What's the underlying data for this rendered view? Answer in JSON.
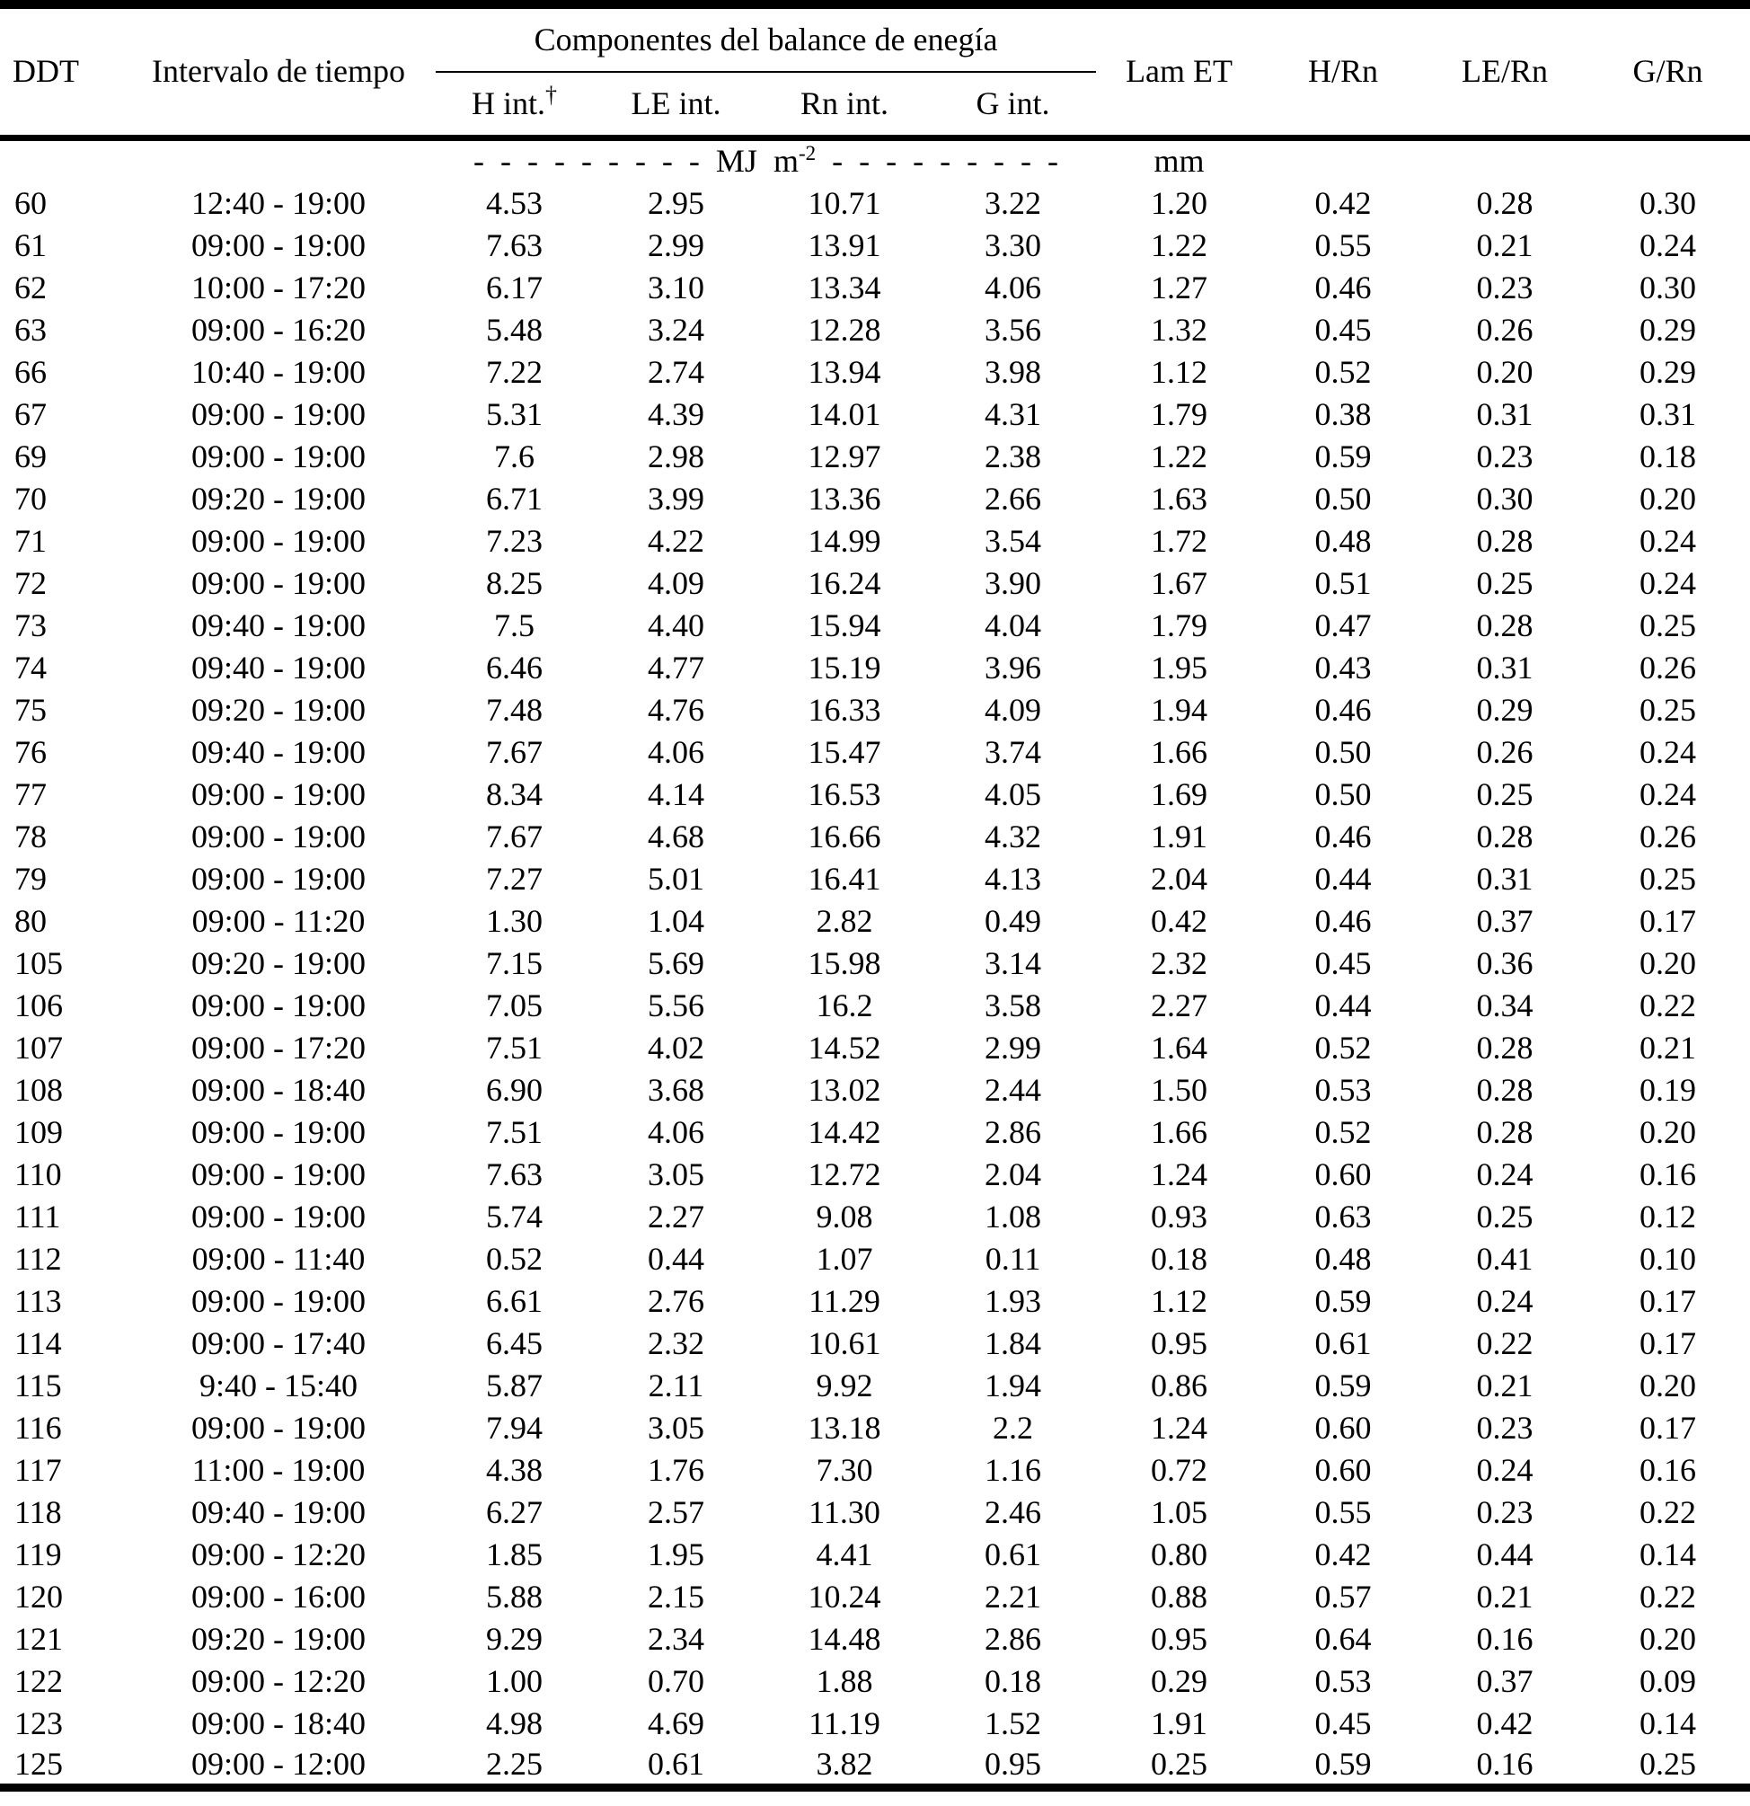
{
  "table": {
    "headers": {
      "ddt": "DDT",
      "interval": "Intervalo de tiempo",
      "components_group": "Componentes del balance de enegía",
      "h_int": "H int.",
      "h_int_sup": "†",
      "le_int": "LE int.",
      "rn_int": "Rn int.",
      "g_int": "G int.",
      "lam_et": "Lam ET",
      "h_rn": "H/Rn",
      "le_rn": "LE/Rn",
      "g_rn": "G/Rn"
    },
    "units": {
      "dashes_left": "- - - - - - - - -  ",
      "mj_label": "MJ m",
      "mj_sup": "-2",
      "dashes_right": "  - - - - - - - - -",
      "mm": "mm"
    },
    "columns_keys": [
      "ddt",
      "interval",
      "h-int",
      "le-int",
      "rn-int",
      "g-int",
      "lam-et",
      "h-rn",
      "le-rn",
      "g-rn"
    ],
    "rows": [
      [
        "60",
        "12:40 - 19:00",
        "4.53",
        "2.95",
        "10.71",
        "3.22",
        "1.20",
        "0.42",
        "0.28",
        "0.30"
      ],
      [
        "61",
        "09:00 - 19:00",
        "7.63",
        "2.99",
        "13.91",
        "3.30",
        "1.22",
        "0.55",
        "0.21",
        "0.24"
      ],
      [
        "62",
        "10:00 - 17:20",
        "6.17",
        "3.10",
        "13.34",
        "4.06",
        "1.27",
        "0.46",
        "0.23",
        "0.30"
      ],
      [
        "63",
        "09:00 - 16:20",
        "5.48",
        "3.24",
        "12.28",
        "3.56",
        "1.32",
        "0.45",
        "0.26",
        "0.29"
      ],
      [
        "66",
        "10:40 - 19:00",
        "7.22",
        "2.74",
        "13.94",
        "3.98",
        "1.12",
        "0.52",
        "0.20",
        "0.29"
      ],
      [
        "67",
        "09:00 - 19:00",
        "5.31",
        "4.39",
        "14.01",
        "4.31",
        "1.79",
        "0.38",
        "0.31",
        "0.31"
      ],
      [
        "69",
        "09:00 - 19:00",
        "7.6",
        "2.98",
        "12.97",
        "2.38",
        "1.22",
        "0.59",
        "0.23",
        "0.18"
      ],
      [
        "70",
        "09:20 - 19:00",
        "6.71",
        "3.99",
        "13.36",
        "2.66",
        "1.63",
        "0.50",
        "0.30",
        "0.20"
      ],
      [
        "71",
        "09:00 - 19:00",
        "7.23",
        "4.22",
        "14.99",
        "3.54",
        "1.72",
        "0.48",
        "0.28",
        "0.24"
      ],
      [
        "72",
        "09:00 - 19:00",
        "8.25",
        "4.09",
        "16.24",
        "3.90",
        "1.67",
        "0.51",
        "0.25",
        "0.24"
      ],
      [
        "73",
        "09:40 - 19:00",
        "7.5",
        "4.40",
        "15.94",
        "4.04",
        "1.79",
        "0.47",
        "0.28",
        "0.25"
      ],
      [
        "74",
        "09:40 - 19:00",
        "6.46",
        "4.77",
        "15.19",
        "3.96",
        "1.95",
        "0.43",
        "0.31",
        "0.26"
      ],
      [
        "75",
        "09:20 - 19:00",
        "7.48",
        "4.76",
        "16.33",
        "4.09",
        "1.94",
        "0.46",
        "0.29",
        "0.25"
      ],
      [
        "76",
        "09:40 - 19:00",
        "7.67",
        "4.06",
        "15.47",
        "3.74",
        "1.66",
        "0.50",
        "0.26",
        "0.24"
      ],
      [
        "77",
        "09:00 - 19:00",
        "8.34",
        "4.14",
        "16.53",
        "4.05",
        "1.69",
        "0.50",
        "0.25",
        "0.24"
      ],
      [
        "78",
        "09:00 - 19:00",
        "7.67",
        "4.68",
        "16.66",
        "4.32",
        "1.91",
        "0.46",
        "0.28",
        "0.26"
      ],
      [
        "79",
        "09:00 - 19:00",
        "7.27",
        "5.01",
        "16.41",
        "4.13",
        "2.04",
        "0.44",
        "0.31",
        "0.25"
      ],
      [
        "80",
        "09:00 - 11:20",
        "1.30",
        "1.04",
        "2.82",
        "0.49",
        "0.42",
        "0.46",
        "0.37",
        "0.17"
      ],
      [
        "105",
        "09:20 - 19:00",
        "7.15",
        "5.69",
        "15.98",
        "3.14",
        "2.32",
        "0.45",
        "0.36",
        "0.20"
      ],
      [
        "106",
        "09:00 - 19:00",
        "7.05",
        "5.56",
        "16.2",
        "3.58",
        "2.27",
        "0.44",
        "0.34",
        "0.22"
      ],
      [
        "107",
        "09:00 - 17:20",
        "7.51",
        "4.02",
        "14.52",
        "2.99",
        "1.64",
        "0.52",
        "0.28",
        "0.21"
      ],
      [
        "108",
        "09:00 - 18:40",
        "6.90",
        "3.68",
        "13.02",
        "2.44",
        "1.50",
        "0.53",
        "0.28",
        "0.19"
      ],
      [
        "109",
        "09:00 - 19:00",
        "7.51",
        "4.06",
        "14.42",
        "2.86",
        "1.66",
        "0.52",
        "0.28",
        "0.20"
      ],
      [
        "110",
        "09:00 - 19:00",
        "7.63",
        "3.05",
        "12.72",
        "2.04",
        "1.24",
        "0.60",
        "0.24",
        "0.16"
      ],
      [
        "111",
        "09:00 - 19:00",
        "5.74",
        "2.27",
        "9.08",
        "1.08",
        "0.93",
        "0.63",
        "0.25",
        "0.12"
      ],
      [
        "112",
        "09:00 - 11:40",
        "0.52",
        "0.44",
        "1.07",
        "0.11",
        "0.18",
        "0.48",
        "0.41",
        "0.10"
      ],
      [
        "113",
        "09:00 - 19:00",
        "6.61",
        "2.76",
        "11.29",
        "1.93",
        "1.12",
        "0.59",
        "0.24",
        "0.17"
      ],
      [
        "114",
        "09:00 - 17:40",
        "6.45",
        "2.32",
        "10.61",
        "1.84",
        "0.95",
        "0.61",
        "0.22",
        "0.17"
      ],
      [
        "115",
        "9:40 - 15:40",
        "5.87",
        "2.11",
        "9.92",
        "1.94",
        "0.86",
        "0.59",
        "0.21",
        "0.20"
      ],
      [
        "116",
        "09:00 - 19:00",
        "7.94",
        "3.05",
        "13.18",
        "2.2",
        "1.24",
        "0.60",
        "0.23",
        "0.17"
      ],
      [
        "117",
        "11:00 - 19:00",
        "4.38",
        "1.76",
        "7.30",
        "1.16",
        "0.72",
        "0.60",
        "0.24",
        "0.16"
      ],
      [
        "118",
        "09:40 - 19:00",
        "6.27",
        "2.57",
        "11.30",
        "2.46",
        "1.05",
        "0.55",
        "0.23",
        "0.22"
      ],
      [
        "119",
        "09:00 - 12:20",
        "1.85",
        "1.95",
        "4.41",
        "0.61",
        "0.80",
        "0.42",
        "0.44",
        "0.14"
      ],
      [
        "120",
        "09:00 - 16:00",
        "5.88",
        "2.15",
        "10.24",
        "2.21",
        "0.88",
        "0.57",
        "0.21",
        "0.22"
      ],
      [
        "121",
        "09:20 - 19:00",
        "9.29",
        "2.34",
        "14.48",
        "2.86",
        "0.95",
        "0.64",
        "0.16",
        "0.20"
      ],
      [
        "122",
        "09:00 - 12:20",
        "1.00",
        "0.70",
        "1.88",
        "0.18",
        "0.29",
        "0.53",
        "0.37",
        "0.09"
      ],
      [
        "123",
        "09:00 - 18:40",
        "4.98",
        "4.69",
        "11.19",
        "1.52",
        "1.91",
        "0.45",
        "0.42",
        "0.14"
      ],
      [
        "125",
        "09:00 - 12:00",
        "2.25",
        "0.61",
        "3.82",
        "0.95",
        "0.25",
        "0.59",
        "0.16",
        "0.25"
      ]
    ]
  }
}
